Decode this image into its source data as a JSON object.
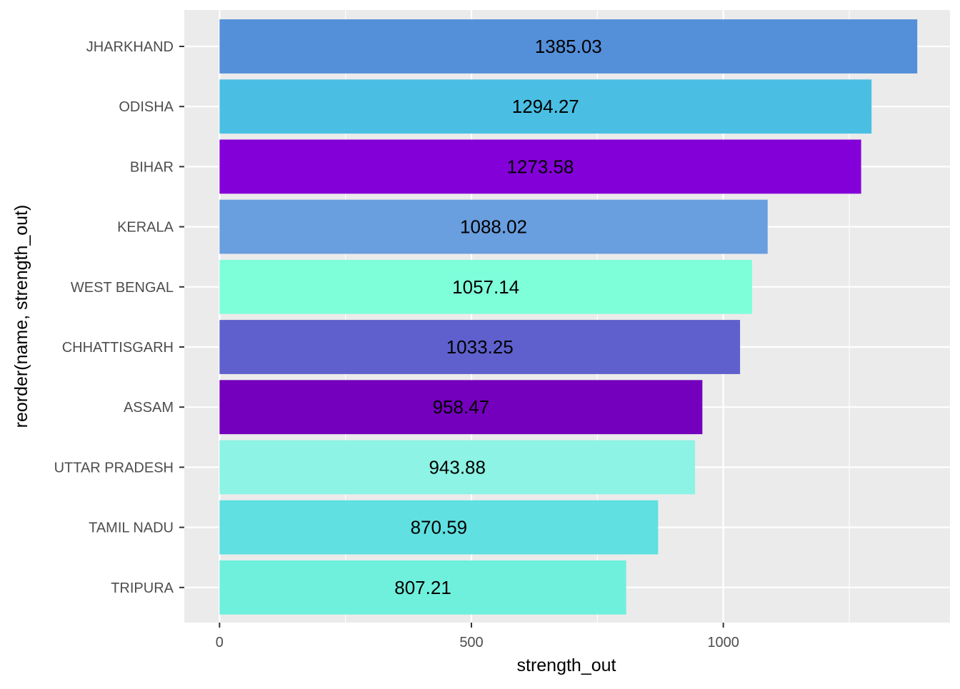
{
  "chart_data": {
    "type": "bar",
    "orientation": "horizontal",
    "title": "",
    "xlabel": "strength_out",
    "ylabel": "reorder(name, strength_out)",
    "xlim": [
      -70,
      1450
    ],
    "x_ticks": [
      0,
      500,
      1000
    ],
    "x_tick_labels": [
      "0",
      "500",
      "1000"
    ],
    "x_minor_ticks": [
      250,
      750,
      1250
    ],
    "grid": true,
    "legend": "none",
    "categories": [
      "JHARKHAND",
      "ODISHA",
      "BIHAR",
      "KERALA",
      "WEST BENGAL",
      "CHHATTISGARH",
      "ASSAM",
      "UTTAR PRADESH",
      "TAMIL NADU",
      "TRIPURA"
    ],
    "values": [
      1385.03,
      1294.27,
      1273.58,
      1088.02,
      1057.14,
      1033.25,
      958.47,
      943.88,
      870.59,
      807.21
    ],
    "data_labels": [
      "1385.03",
      "1294.27",
      "1273.58",
      "1088.02",
      "1057.14",
      "1033.25",
      "958.47",
      "943.88",
      "870.59",
      "807.21"
    ],
    "colors": [
      "#5490DA",
      "#4ABFE3",
      "#8400D8",
      "#699EDF",
      "#7FFFD9",
      "#5F60CD",
      "#7400BD",
      "#8DF3E4",
      "#60E0E0",
      "#6FF0DC"
    ],
    "panel_background": "#EBEBEB",
    "grid_color": "#FFFFFF"
  }
}
